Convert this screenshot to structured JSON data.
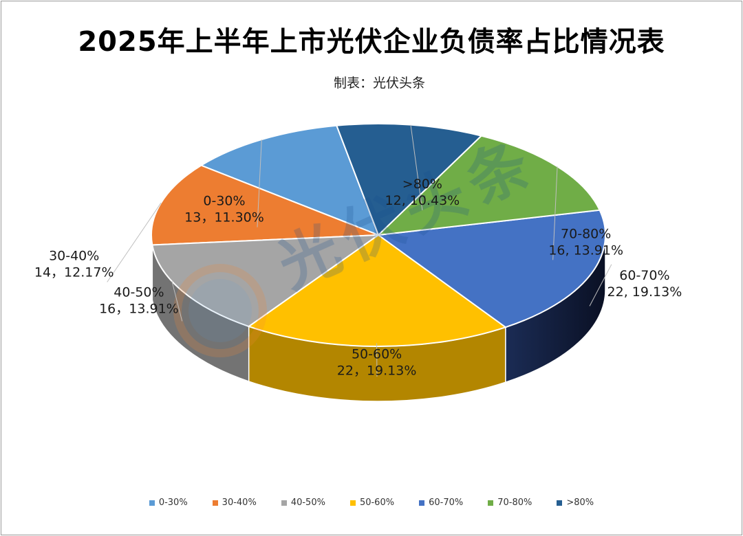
{
  "chart_data": {
    "type": "pie",
    "title": "2025年上半年上市光伏企业负债率占比情况表",
    "subtitle": "制表：光伏头条",
    "watermark": "光伏头条",
    "legend_position": "bottom",
    "slices": [
      {
        "label": "0-30%",
        "value": 13,
        "percent": "11.30%",
        "data_label": "13，11.30%",
        "color": "#5B9BD5"
      },
      {
        "label": "30-40%",
        "value": 14,
        "percent": "12.17%",
        "data_label": "14，12.17%",
        "color": "#ED7D31"
      },
      {
        "label": "40-50%",
        "value": 16,
        "percent": "13.91%",
        "data_label": "16，13.91%",
        "color": "#A5A5A5"
      },
      {
        "label": "50-60%",
        "value": 22,
        "percent": "19.13%",
        "data_label": "22，19.13%",
        "color": "#FFC000"
      },
      {
        "label": "60-70%",
        "value": 22,
        "percent": "19.13%",
        "data_label": "22, 19.13%",
        "color": "#4472C4"
      },
      {
        "label": "70-80%",
        "value": 16,
        "percent": "13.91%",
        "data_label": "16, 13.91%",
        "color": "#70AD47"
      },
      {
        "label": ">80%",
        "value": 12,
        "percent": "10.43%",
        "data_label": "12, 10.43%",
        "color": "#255E91"
      }
    ]
  }
}
